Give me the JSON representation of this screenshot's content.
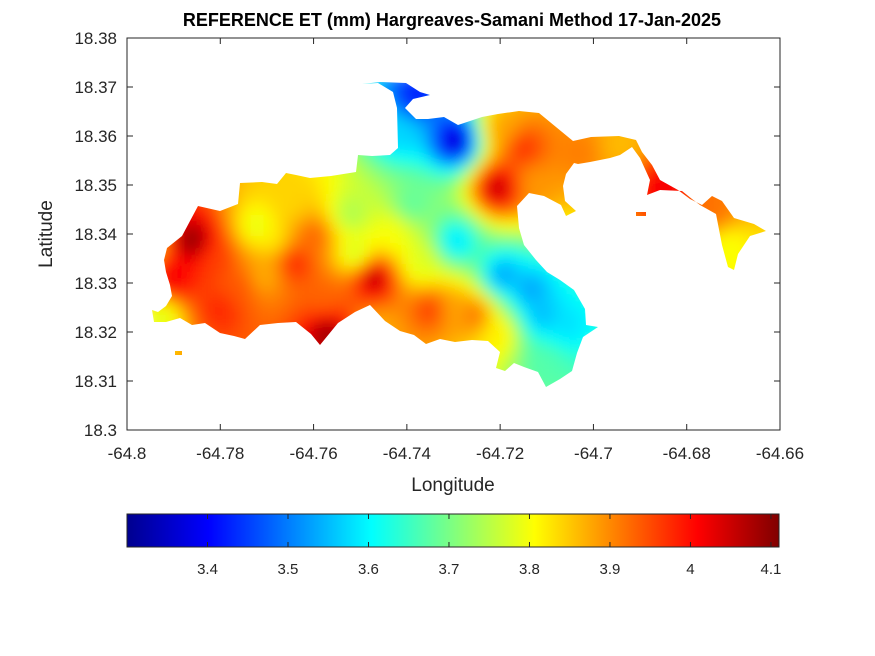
{
  "chart_data": {
    "type": "heatmap",
    "title": "REFERENCE ET (mm) Hargreaves-Samani Method  17-Jan-2025",
    "xlabel": "Longitude",
    "ylabel": "Latitude",
    "xlim": [
      -64.8,
      -64.66
    ],
    "ylim": [
      18.3,
      18.38
    ],
    "xticks": [
      -64.8,
      -64.78,
      -64.76,
      -64.74,
      -64.72,
      -64.7,
      -64.68,
      -64.66
    ],
    "xtick_labels": [
      "-64.8",
      "-64.78",
      "-64.76",
      "-64.74",
      "-64.72",
      "-64.7",
      "-64.68",
      "-64.66"
    ],
    "yticks": [
      18.3,
      18.31,
      18.32,
      18.33,
      18.34,
      18.35,
      18.36,
      18.37,
      18.38
    ],
    "ytick_labels": [
      "18.3",
      "18.31",
      "18.32",
      "18.33",
      "18.34",
      "18.35",
      "18.36",
      "18.37",
      "18.38"
    ],
    "colormap": "jet",
    "colorbar": {
      "location": "bottom",
      "clim": [
        3.3,
        4.11
      ],
      "ticks": [
        3.4,
        3.5,
        3.6,
        3.7,
        3.8,
        3.9,
        4.0,
        4.1
      ],
      "tick_labels": [
        "3.4",
        "3.5",
        "3.6",
        "3.7",
        "3.8",
        "3.9",
        "4",
        "4.1"
      ]
    },
    "field_points": [
      [
        -64.786,
        18.3385,
        4.1
      ],
      [
        -64.79,
        18.331,
        4.02
      ],
      [
        -64.781,
        18.335,
        3.96
      ],
      [
        -64.776,
        18.329,
        3.94
      ],
      [
        -64.78,
        18.3245,
        3.98
      ],
      [
        -64.772,
        18.3415,
        3.78
      ],
      [
        -64.769,
        18.339,
        3.82
      ],
      [
        -64.764,
        18.334,
        3.98
      ],
      [
        -64.765,
        18.3465,
        3.84
      ],
      [
        -64.76,
        18.3395,
        3.93
      ],
      [
        -64.758,
        18.327,
        3.93
      ],
      [
        -64.757,
        18.3195,
        4.09
      ],
      [
        -64.752,
        18.344,
        3.74
      ],
      [
        -64.751,
        18.336,
        3.77
      ],
      [
        -64.747,
        18.331,
        4.07
      ],
      [
        -64.743,
        18.3405,
        3.8
      ],
      [
        -64.739,
        18.346,
        3.68
      ],
      [
        -64.737,
        18.334,
        3.78
      ],
      [
        -64.735,
        18.3245,
        3.96
      ],
      [
        -64.7295,
        18.359,
        3.36
      ],
      [
        -64.738,
        18.368,
        3.42
      ],
      [
        -64.7415,
        18.3605,
        3.57
      ],
      [
        -64.7205,
        18.3495,
        4.06
      ],
      [
        -64.715,
        18.3575,
        3.97
      ],
      [
        -64.7125,
        18.3505,
        3.89
      ],
      [
        -64.7195,
        18.3615,
        3.88
      ],
      [
        -64.7295,
        18.3385,
        3.58
      ],
      [
        -64.7195,
        18.3315,
        3.53
      ],
      [
        -64.7135,
        18.3285,
        3.53
      ],
      [
        -64.711,
        18.3235,
        3.55
      ],
      [
        -64.7055,
        18.3215,
        3.58
      ],
      [
        -64.7105,
        18.3135,
        3.67
      ],
      [
        -64.7205,
        18.3195,
        3.82
      ],
      [
        -64.7255,
        18.3235,
        3.92
      ],
      [
        -64.7295,
        18.3245,
        3.88
      ],
      [
        -64.7465,
        18.3205,
        3.87
      ],
      [
        -64.7705,
        18.3315,
        3.87
      ],
      [
        -64.703,
        18.3565,
        3.91
      ],
      [
        -64.694,
        18.358,
        3.86
      ],
      [
        -64.685,
        18.3495,
        4.02
      ],
      [
        -64.6715,
        18.337,
        3.8
      ],
      [
        -64.6745,
        18.3445,
        3.92
      ],
      [
        -64.7925,
        18.323,
        3.78
      ],
      [
        -64.795,
        18.3375,
        3.86
      ]
    ]
  }
}
